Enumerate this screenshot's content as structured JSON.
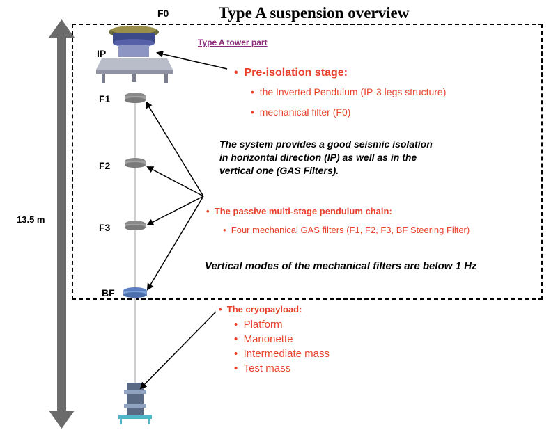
{
  "title": "Type A suspension overview",
  "tower_part_label": "Type A tower part",
  "height_label": "13.5 m",
  "stage_labels": {
    "f0": "F0",
    "ip": "IP",
    "f1": "F1",
    "f2": "F2",
    "f3": "F3",
    "bf": "BF"
  },
  "pre_isolation": {
    "heading": "Pre-isolation stage:",
    "items": [
      "the Inverted Pendulum (IP-3 legs structure)",
      "mechanical filter  (F0)"
    ]
  },
  "isolation_note": [
    "The system provides a good seismic isolation",
    "in horizontal direction (IP) as well as in the",
    "vertical one (GAS Filters)."
  ],
  "pendulum_chain": {
    "heading": "The passive multi-stage pendulum chain:",
    "items": [
      "Four mechanical GAS filters (F1, F2, F3, BF Steering Filter)"
    ]
  },
  "vertical_modes_note": "Vertical modes of the mechanical filters are below 1 Hz",
  "cryopayload": {
    "heading": "The cryopayload:",
    "items": [
      "Platform",
      "Marionette",
      "Intermediate mass",
      "Test mass"
    ]
  },
  "colors": {
    "accent_red": "#e8412c",
    "link_purple": "#8a2b7a",
    "arrow_gray": "#6b6b6b"
  }
}
